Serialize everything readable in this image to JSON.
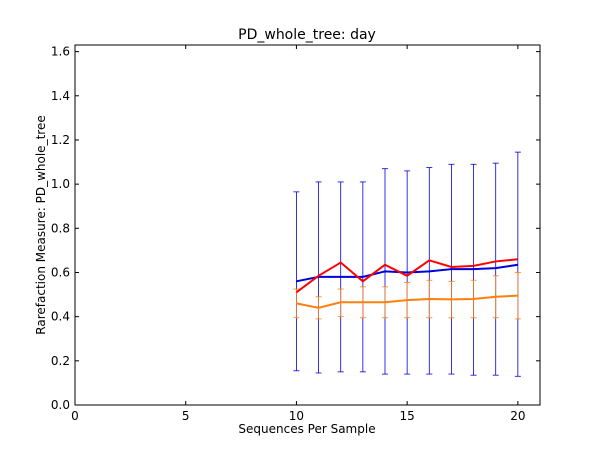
{
  "chart_data": {
    "type": "line",
    "title": "PD_whole_tree: day",
    "xlabel": "Sequences Per Sample",
    "ylabel": "Rarefaction Measure: PD_whole_tree",
    "xlim": [
      0,
      21
    ],
    "ylim": [
      0,
      1.63
    ],
    "xticks": [
      0,
      5,
      10,
      15,
      20
    ],
    "yticks": [
      0.0,
      0.2,
      0.4,
      0.6,
      0.8,
      1.0,
      1.2,
      1.4,
      1.6
    ],
    "grid": false,
    "legend": "none",
    "x": [
      10,
      11,
      12,
      13,
      14,
      15,
      16,
      17,
      18,
      19,
      20
    ],
    "series": [
      {
        "color": "#0000dd",
        "values": [
          0.56,
          0.58,
          0.58,
          0.58,
          0.605,
          0.6,
          0.605,
          0.615,
          0.615,
          0.62,
          0.635
        ],
        "err_low": [
          0.155,
          0.145,
          0.15,
          0.15,
          0.14,
          0.14,
          0.14,
          0.14,
          0.135,
          0.135,
          0.13
        ],
        "err_high": [
          0.965,
          1.01,
          1.01,
          1.01,
          1.07,
          1.06,
          1.075,
          1.09,
          1.09,
          1.095,
          1.145
        ]
      },
      {
        "color": "#ff0000",
        "values": [
          0.51,
          0.585,
          0.645,
          0.56,
          0.635,
          0.585,
          0.655,
          0.625,
          0.63,
          0.65,
          0.66
        ],
        "err_low": [
          0.51,
          0.585,
          0.645,
          0.56,
          0.635,
          0.585,
          0.655,
          0.625,
          0.63,
          0.65,
          0.66
        ],
        "err_high": [
          0.51,
          0.585,
          0.645,
          0.56,
          0.635,
          0.585,
          0.655,
          0.625,
          0.63,
          0.65,
          0.66
        ]
      },
      {
        "color": "#ff7f0e",
        "values": [
          0.46,
          0.44,
          0.465,
          0.465,
          0.465,
          0.475,
          0.48,
          0.478,
          0.48,
          0.49,
          0.495
        ],
        "err_low": [
          0.395,
          0.39,
          0.4,
          0.395,
          0.395,
          0.395,
          0.395,
          0.395,
          0.395,
          0.395,
          0.39
        ],
        "err_high": [
          0.525,
          0.49,
          0.525,
          0.535,
          0.535,
          0.555,
          0.565,
          0.56,
          0.565,
          0.585,
          0.6
        ]
      }
    ]
  }
}
